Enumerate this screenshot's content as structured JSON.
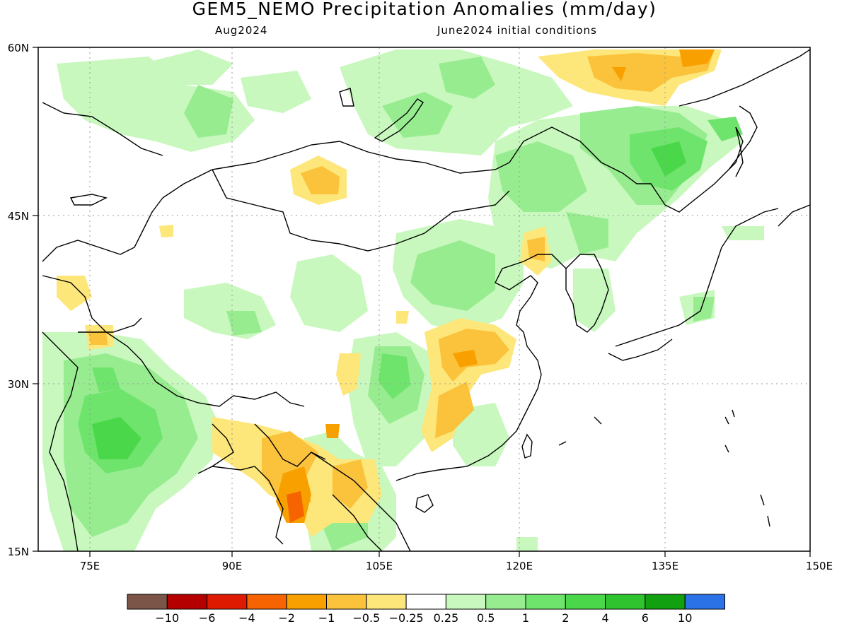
{
  "title": "GEM5_NEMO Precipitation Anomalies (mm/day)",
  "subtitle_left": "Aug2024",
  "subtitle_right": "June2024 initial conditions",
  "lat_labels": [
    "60N",
    "45N",
    "30N",
    "15N"
  ],
  "lon_labels": [
    "75E",
    "90E",
    "105E",
    "120E",
    "135E",
    "150E"
  ],
  "colorbar": {
    "colors": [
      "#7a5548",
      "#b50000",
      "#de1a00",
      "#f56400",
      "#f8a000",
      "#fbc23c",
      "#fde67a",
      "#ffffff",
      "#c8f8be",
      "#98ec90",
      "#6fe46c",
      "#4ad84a",
      "#2fc42f",
      "#10a010",
      "#2a72e6"
    ],
    "tick_labels": [
      "-10",
      "-6",
      "-4",
      "-2",
      "-1",
      "-0.5",
      "-0.25",
      "0.25",
      "0.5",
      "1",
      "2",
      "4",
      "6",
      "10"
    ]
  },
  "colors": {
    "frame": "#000000",
    "grid": "#9a9a9a",
    "coast": "#000000"
  }
}
